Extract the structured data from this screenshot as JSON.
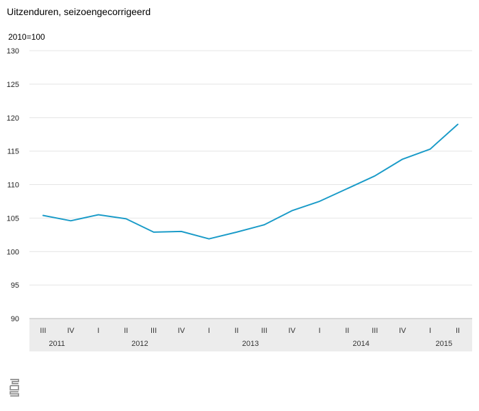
{
  "chart_data": {
    "type": "line",
    "title": "Uitzenduren, seizoengecorrigeerd",
    "unit_label": "2010=100",
    "ylim": [
      90,
      130
    ],
    "y_ticks": [
      90,
      95,
      100,
      105,
      110,
      115,
      120,
      125,
      130
    ],
    "grid": true,
    "legend": "none",
    "quarters": [
      "III",
      "IV",
      "I",
      "II",
      "III",
      "IV",
      "I",
      "II",
      "III",
      "IV",
      "I",
      "II",
      "III",
      "IV",
      "I",
      "II"
    ],
    "years": [
      {
        "label": "2011",
        "start": 0,
        "end": 1
      },
      {
        "label": "2012",
        "start": 2,
        "end": 5
      },
      {
        "label": "2013",
        "start": 6,
        "end": 9
      },
      {
        "label": "2014",
        "start": 10,
        "end": 13
      },
      {
        "label": "2015",
        "start": 14,
        "end": 15
      }
    ],
    "series": [
      {
        "values": [
          105.4,
          104.6,
          105.5,
          104.9,
          102.9,
          103.0,
          101.9,
          102.9,
          104.0,
          106.1,
          107.5,
          109.4,
          111.3,
          113.8,
          115.3,
          119.0
        ]
      }
    ],
    "colors": {
      "line": "#1a9bc8",
      "grid": "#e4e4e4",
      "axis": "#b9b9b9",
      "band": "#ececec"
    }
  },
  "logo": {
    "icon": "cbs-logo-icon"
  }
}
